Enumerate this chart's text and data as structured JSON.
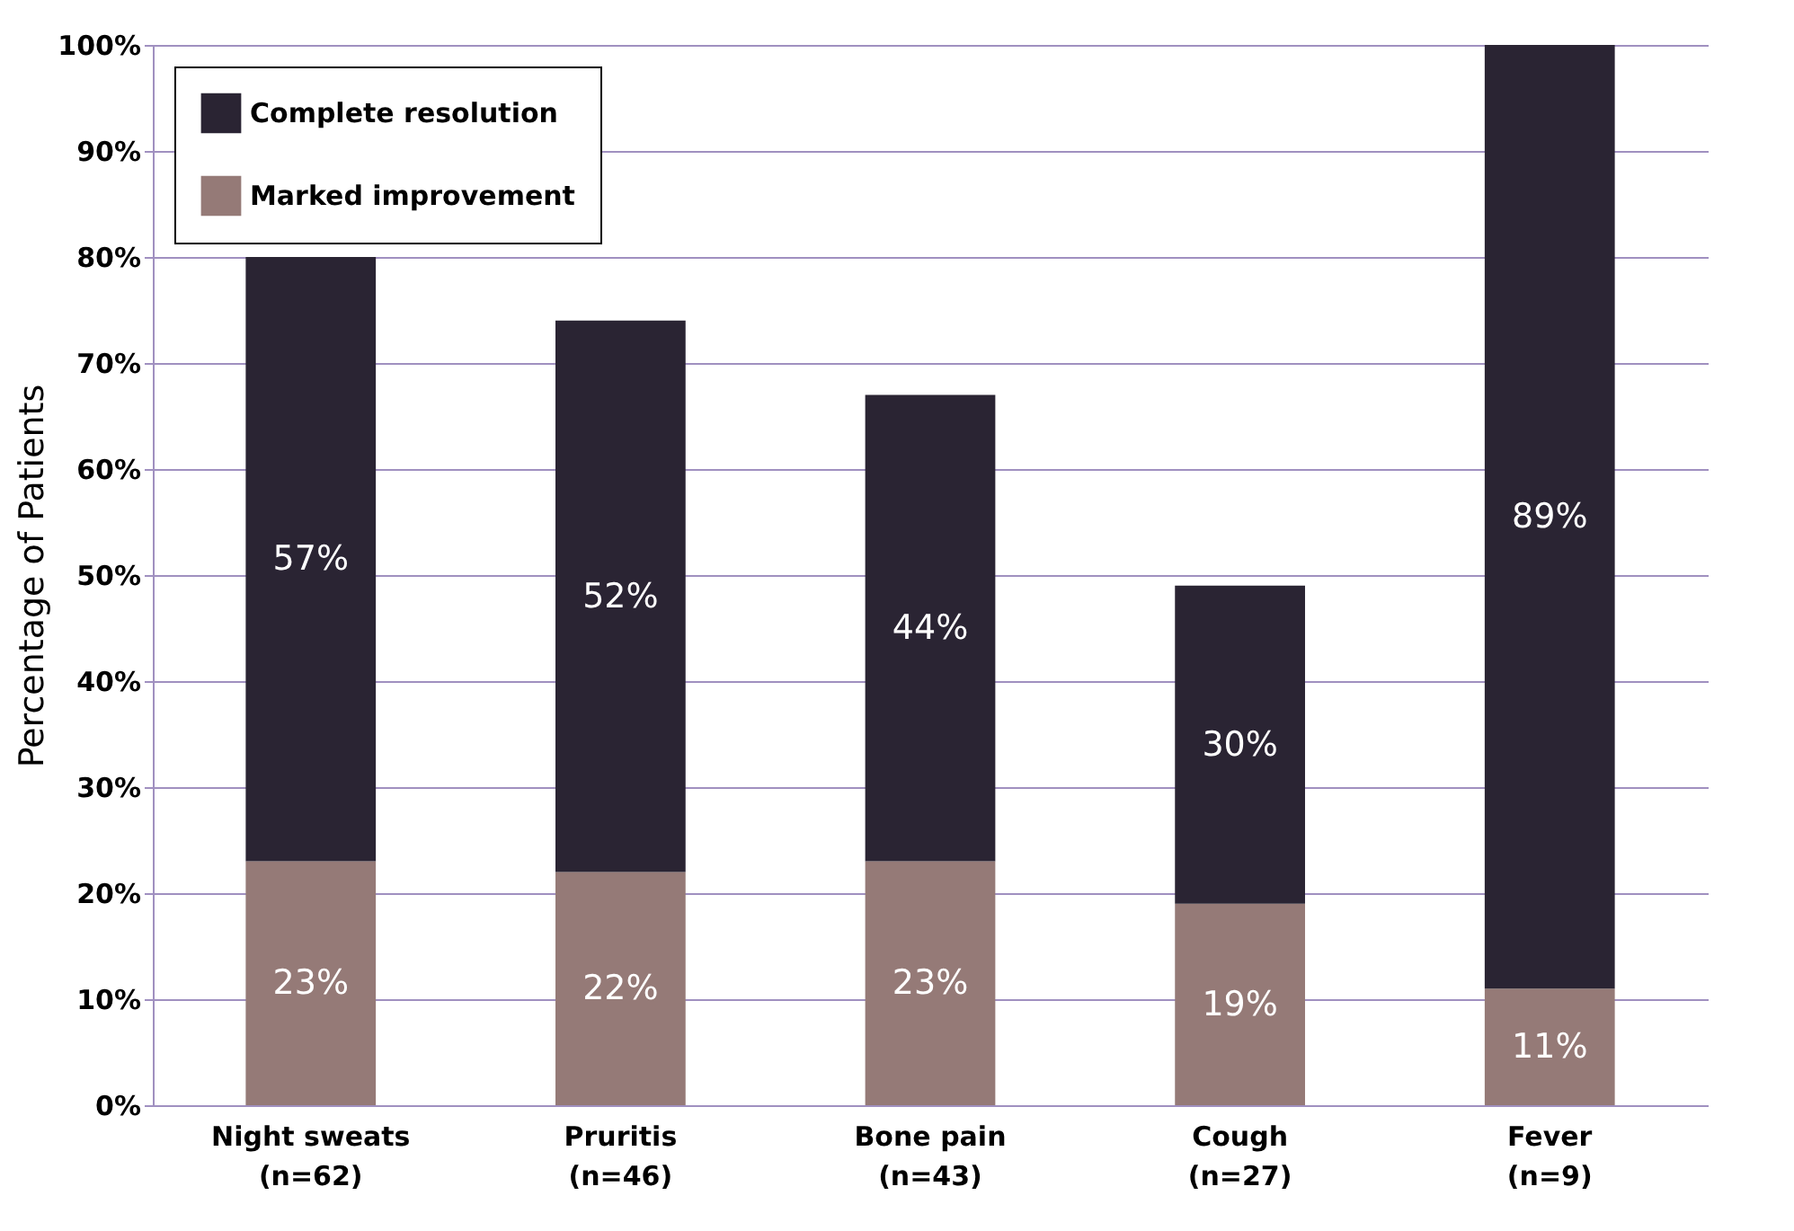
{
  "chart_data": {
    "type": "bar",
    "stacked": true,
    "ylabel": "Percentage of Patients",
    "categories": [
      "Night sweats\n(n=62)",
      "Pruritis\n(n=46)",
      "Bone pain\n(n=43)",
      "Cough\n(n=27)",
      "Fever\n(n=9)"
    ],
    "series": [
      {
        "name": "Marked improvement",
        "color": "#957a77",
        "values": [
          23,
          22,
          23,
          19,
          11
        ],
        "value_labels": [
          "23%",
          "22%",
          "23%",
          "19%",
          "11%"
        ]
      },
      {
        "name": "Complete resolution",
        "color": "#2a2433",
        "values": [
          57,
          52,
          44,
          30,
          89
        ],
        "value_labels": [
          "57%",
          "52%",
          "44%",
          "30%",
          "89%"
        ]
      }
    ],
    "ylim": [
      0,
      100
    ],
    "yticks": [
      {
        "value": 0,
        "label": "0%"
      },
      {
        "value": 10,
        "label": "10%"
      },
      {
        "value": 20,
        "label": "20%"
      },
      {
        "value": 30,
        "label": "30%"
      },
      {
        "value": 40,
        "label": "40%"
      },
      {
        "value": 50,
        "label": "50%"
      },
      {
        "value": 60,
        "label": "60%"
      },
      {
        "value": 70,
        "label": "70%"
      },
      {
        "value": 80,
        "label": "80%"
      },
      {
        "value": 90,
        "label": "90%"
      },
      {
        "value": 100,
        "label": "100%"
      }
    ],
    "grid": "y",
    "legend": "top left"
  }
}
